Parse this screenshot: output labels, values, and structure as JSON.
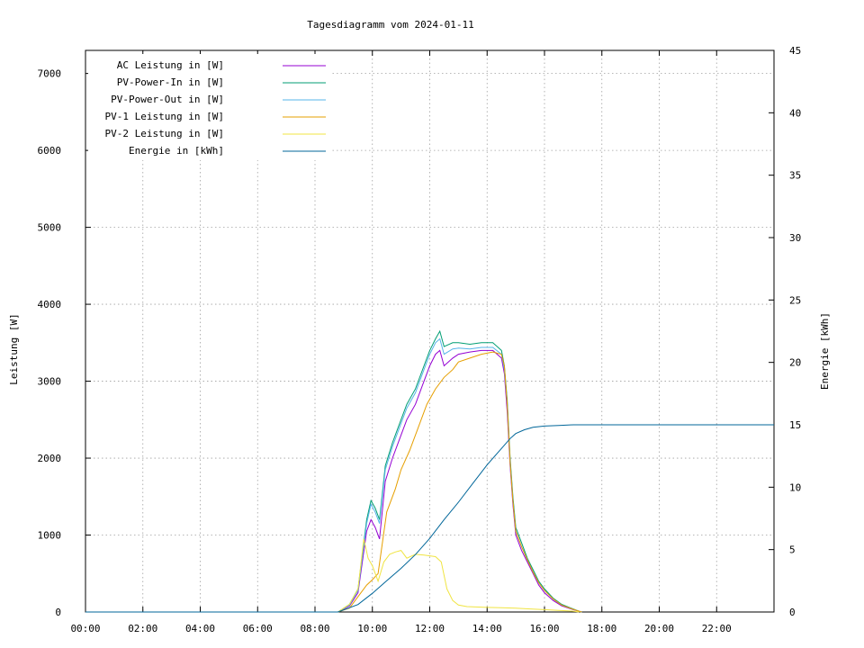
{
  "chart_data": {
    "type": "line",
    "title": "Tagesdiagramm vom 2024-01-11",
    "xlabel": "",
    "ylabel": "Leistung [W]",
    "y2label": "Energie [kWh]",
    "xlim": [
      0,
      24
    ],
    "ylim": [
      0,
      7300
    ],
    "y2lim": [
      0,
      45
    ],
    "xticks": [
      "00:00",
      "02:00",
      "04:00",
      "06:00",
      "08:00",
      "10:00",
      "12:00",
      "14:00",
      "16:00",
      "18:00",
      "20:00",
      "22:00"
    ],
    "xtick_values": [
      0,
      2,
      4,
      6,
      8,
      10,
      12,
      14,
      16,
      18,
      20,
      22
    ],
    "yticks": [
      0,
      1000,
      2000,
      3000,
      4000,
      5000,
      6000,
      7000
    ],
    "y2ticks": [
      0,
      5,
      10,
      15,
      20,
      25,
      30,
      35,
      40,
      45
    ],
    "grid": true,
    "legend_position": "top-left",
    "series": [
      {
        "name": "AC Leistung in [W]",
        "axis": "y1",
        "color": "#9400d3",
        "x": [
          8.8,
          9.2,
          9.5,
          9.8,
          9.95,
          10.1,
          10.25,
          10.45,
          10.7,
          11.0,
          11.2,
          11.5,
          11.8,
          12.0,
          12.2,
          12.35,
          12.5,
          12.8,
          13.0,
          13.4,
          13.8,
          14.2,
          14.5,
          14.6,
          14.7,
          14.8,
          14.9,
          15.0,
          15.2,
          15.4,
          15.6,
          15.8,
          16.0,
          16.3,
          16.6,
          17.0,
          17.2,
          17.3
        ],
        "y": [
          0,
          80,
          250,
          1050,
          1200,
          1100,
          950,
          1700,
          2000,
          2300,
          2500,
          2700,
          3000,
          3200,
          3350,
          3400,
          3200,
          3300,
          3350,
          3380,
          3400,
          3400,
          3300,
          3100,
          2600,
          1900,
          1400,
          1000,
          800,
          650,
          500,
          350,
          250,
          150,
          80,
          30,
          10,
          0
        ]
      },
      {
        "name": "PV-Power-In in [W]",
        "axis": "y1",
        "color": "#009e73",
        "x": [
          8.8,
          9.2,
          9.5,
          9.8,
          9.95,
          10.1,
          10.25,
          10.45,
          10.7,
          11.0,
          11.2,
          11.5,
          11.8,
          12.0,
          12.2,
          12.35,
          12.5,
          12.8,
          13.0,
          13.4,
          13.8,
          14.2,
          14.5,
          14.6,
          14.7,
          14.8,
          14.9,
          15.0,
          15.2,
          15.4,
          15.6,
          15.8,
          16.0,
          16.3,
          16.6,
          17.0,
          17.2,
          17.3
        ],
        "y": [
          0,
          100,
          300,
          1200,
          1450,
          1350,
          1200,
          1900,
          2200,
          2500,
          2700,
          2900,
          3200,
          3400,
          3550,
          3650,
          3450,
          3500,
          3500,
          3480,
          3500,
          3500,
          3400,
          3200,
          2750,
          2000,
          1500,
          1100,
          900,
          700,
          550,
          400,
          300,
          180,
          100,
          40,
          10,
          0
        ]
      },
      {
        "name": "PV-Power-Out in [W]",
        "axis": "y1",
        "color": "#56b4e9",
        "x": [
          8.8,
          9.2,
          9.5,
          9.8,
          9.95,
          10.1,
          10.25,
          10.45,
          10.7,
          11.0,
          11.2,
          11.5,
          11.8,
          12.0,
          12.2,
          12.35,
          12.5,
          12.8,
          13.0,
          13.4,
          13.8,
          14.2,
          14.5,
          14.6,
          14.7,
          14.8,
          14.9,
          15.0,
          15.2,
          15.4,
          15.6,
          15.8,
          16.0,
          16.3,
          16.6,
          17.0,
          17.2,
          17.3
        ],
        "y": [
          0,
          90,
          280,
          1150,
          1400,
          1300,
          1150,
          1850,
          2150,
          2450,
          2650,
          2850,
          3150,
          3350,
          3500,
          3550,
          3350,
          3420,
          3430,
          3420,
          3440,
          3440,
          3350,
          3150,
          2700,
          1950,
          1450,
          1050,
          850,
          680,
          520,
          380,
          280,
          170,
          90,
          35,
          10,
          0
        ]
      },
      {
        "name": "PV-1 Leistung in [W]",
        "axis": "y1",
        "color": "#e69f00",
        "x": [
          8.8,
          9.2,
          9.5,
          9.8,
          10.0,
          10.2,
          10.35,
          10.5,
          10.8,
          11.0,
          11.3,
          11.6,
          11.9,
          12.2,
          12.5,
          12.8,
          13.0,
          13.4,
          13.8,
          14.2,
          14.5,
          14.6,
          14.7,
          14.8,
          14.9,
          15.0,
          15.2,
          15.4,
          15.6,
          15.8,
          16.0,
          16.3,
          16.6,
          17.0,
          17.2,
          17.3
        ],
        "y": [
          0,
          50,
          200,
          350,
          420,
          500,
          900,
          1300,
          1600,
          1850,
          2100,
          2400,
          2700,
          2900,
          3050,
          3150,
          3250,
          3300,
          3350,
          3380,
          3350,
          3200,
          2700,
          1950,
          1450,
          1050,
          850,
          680,
          520,
          380,
          280,
          170,
          90,
          35,
          10,
          0
        ]
      },
      {
        "name": "PV-2 Leistung in [W]",
        "axis": "y1",
        "color": "#f0e442",
        "x": [
          8.8,
          9.2,
          9.5,
          9.7,
          9.85,
          10.0,
          10.2,
          10.4,
          10.6,
          10.8,
          11.0,
          11.2,
          11.5,
          11.8,
          12.0,
          12.2,
          12.4,
          12.6,
          12.8,
          13.0,
          13.3,
          13.6,
          14.0,
          14.5,
          15.0,
          15.5,
          16.0,
          16.5,
          17.0,
          17.2
        ],
        "y": [
          0,
          100,
          300,
          950,
          700,
          600,
          400,
          650,
          750,
          780,
          800,
          700,
          750,
          740,
          730,
          720,
          650,
          300,
          150,
          90,
          70,
          65,
          60,
          55,
          50,
          40,
          30,
          20,
          10,
          0
        ]
      },
      {
        "name": "Energie in [kWh]",
        "axis": "y2",
        "color": "#006699",
        "x": [
          0,
          8.8,
          9.5,
          10.0,
          10.5,
          11.0,
          11.5,
          12.0,
          12.5,
          13.0,
          13.5,
          14.0,
          14.5,
          14.8,
          15.0,
          15.3,
          15.6,
          16.0,
          16.5,
          17.0,
          18.0,
          24.0
        ],
        "y": [
          0,
          0,
          0.6,
          1.5,
          2.5,
          3.5,
          4.6,
          5.9,
          7.4,
          8.8,
          10.3,
          11.8,
          13.1,
          13.9,
          14.3,
          14.6,
          14.8,
          14.9,
          14.95,
          15.0,
          15.0,
          15.0
        ]
      }
    ]
  }
}
